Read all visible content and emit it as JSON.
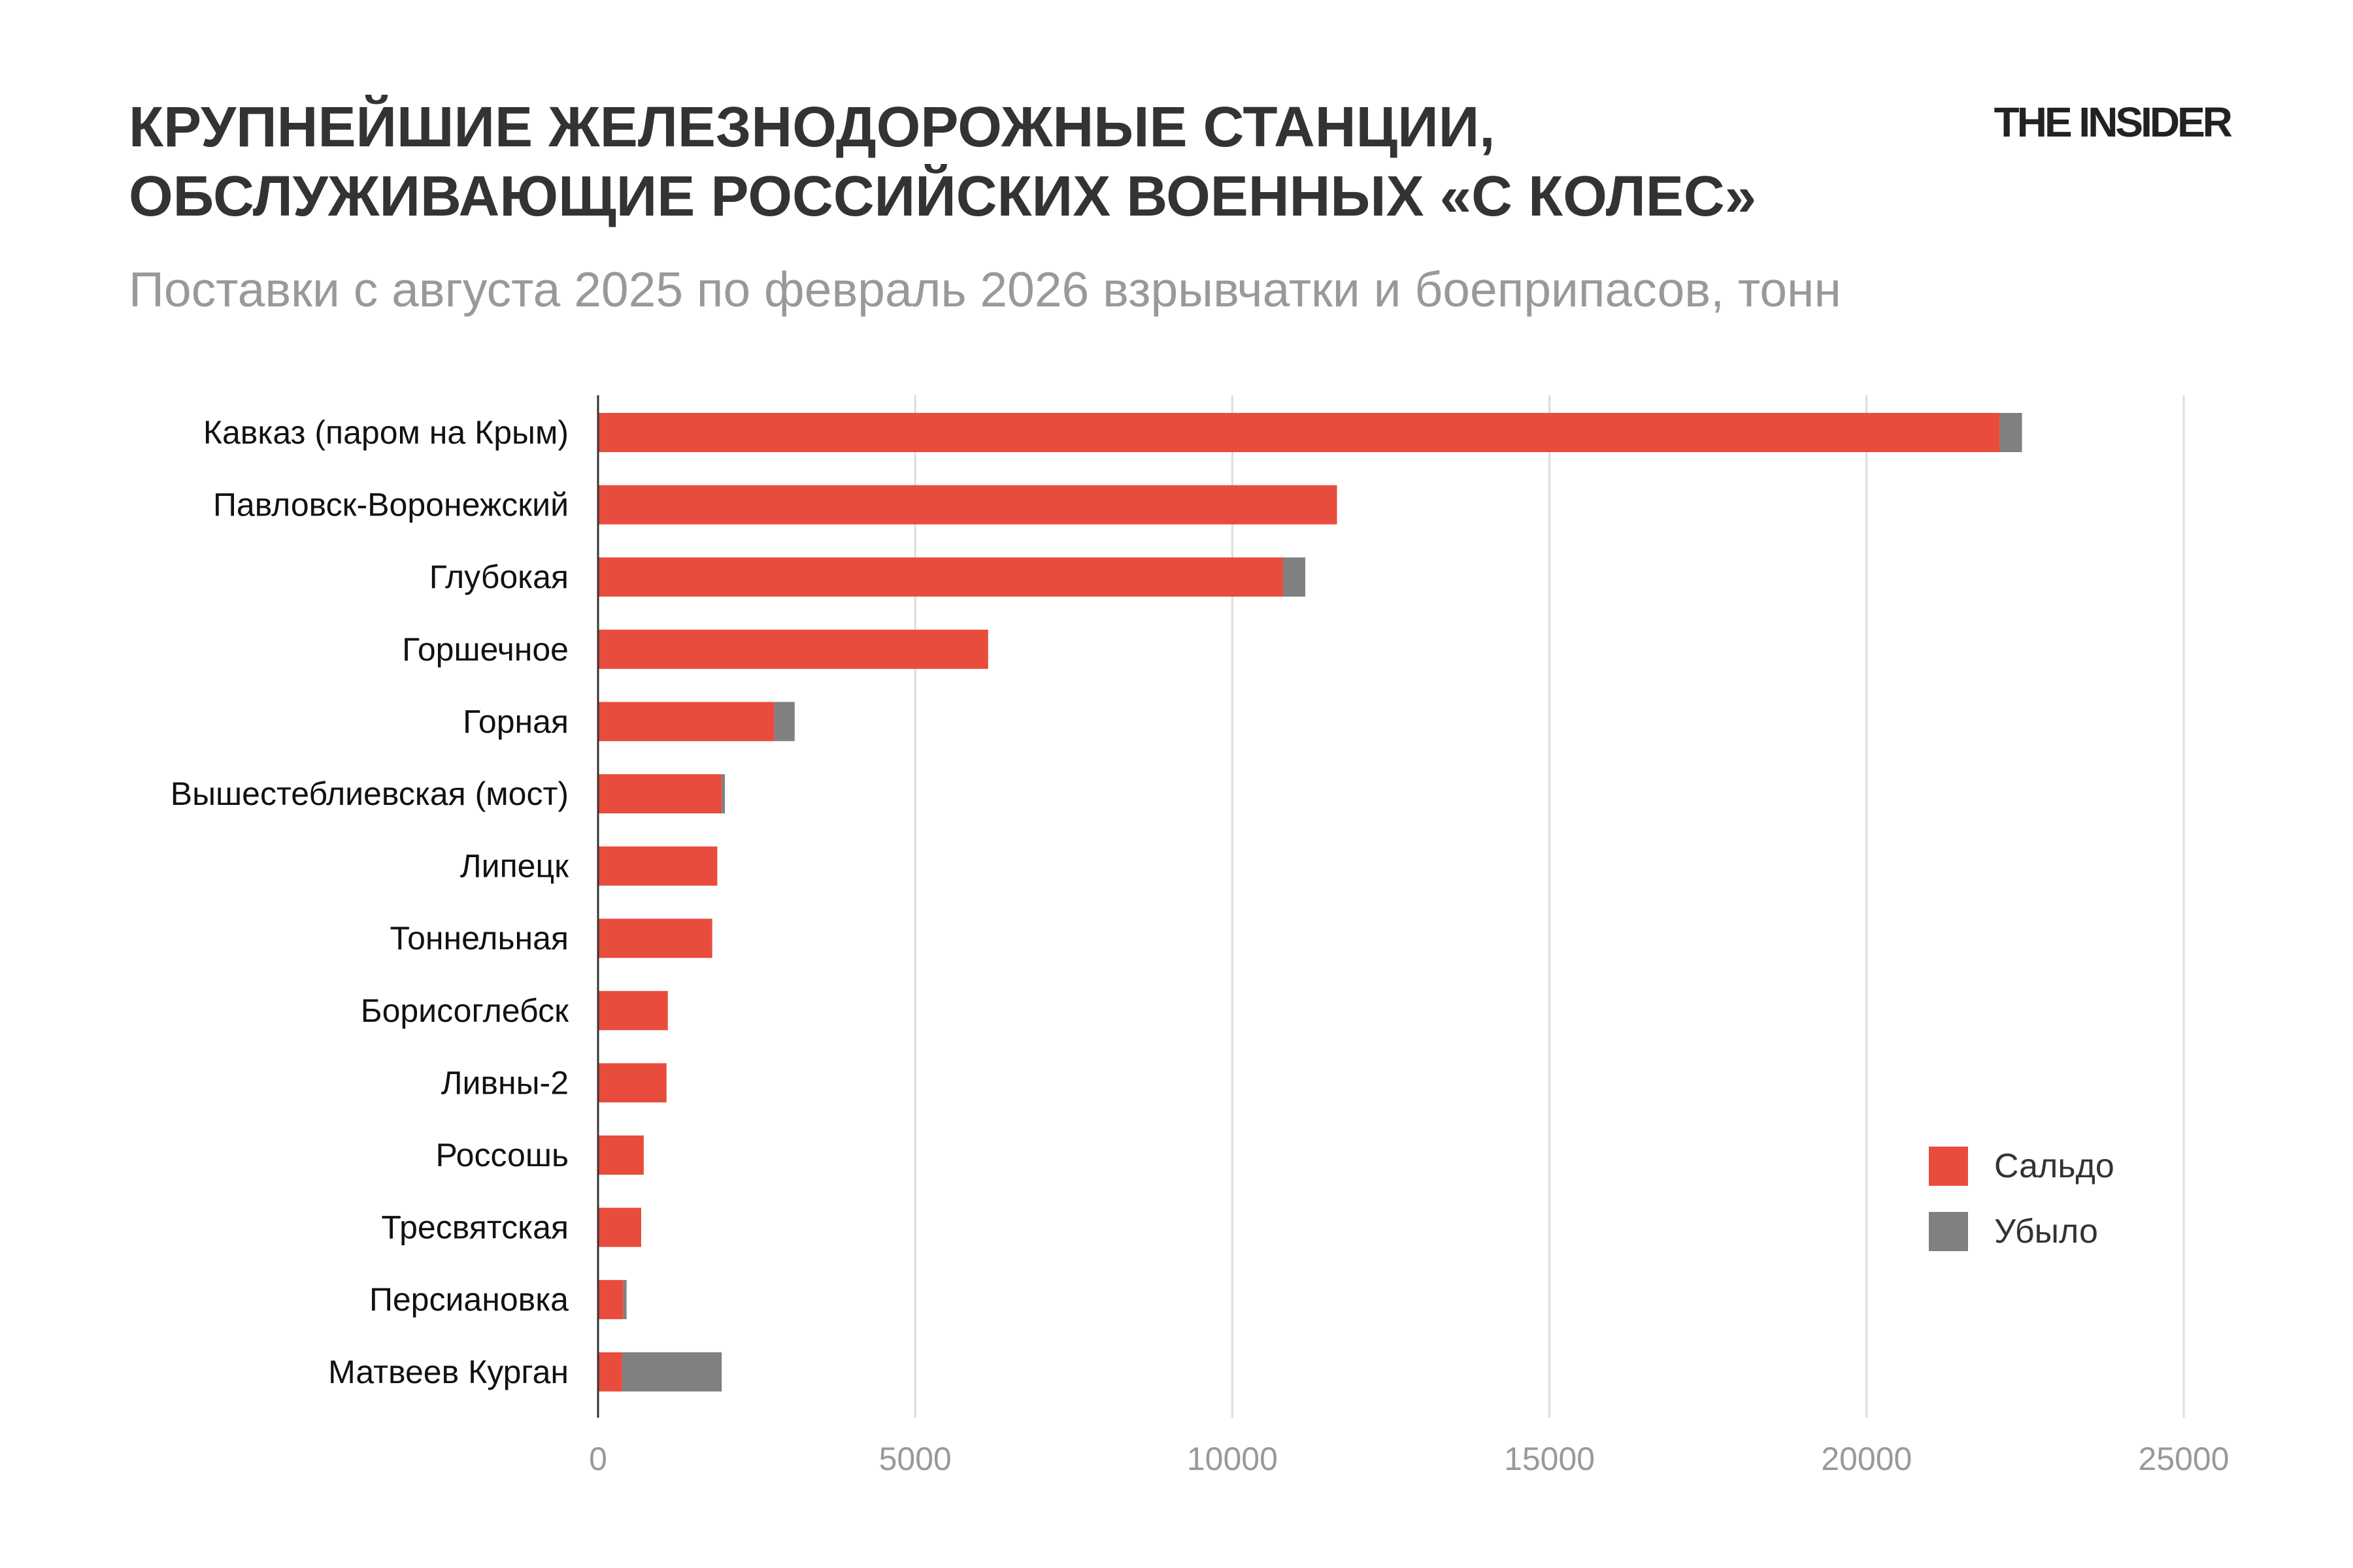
{
  "header": {
    "title_lines": [
      "КРУПНЕЙШИЕ ЖЕЛЕЗНОДОРОЖНЫЕ СТАНЦИИ,",
      "ОБСЛУЖИВАЮЩИЕ РОССИЙСКИХ ВОЕННЫХ «С КОЛЕС»"
    ],
    "subtitle": "Поставки с августа 2025 по февраль 2026 взрывчатки и боеприпасов, тонн",
    "logo": "THE INSIDER"
  },
  "chart_data": {
    "type": "bar",
    "orientation": "horizontal",
    "stacked": true,
    "categories": [
      "Кавказ (паром на Крым)",
      "Павловск-Воронежский",
      "Глубокая",
      "Горшечное",
      "Горная",
      "Вышестеблиевская (мост)",
      "Липецк",
      "Тоннельная",
      "Борисоглебск",
      "Ливны-2",
      "Россошь",
      "Тресвятская",
      "Персиановка",
      "Матвеев Курган"
    ],
    "series": [
      {
        "name": "Сальдо",
        "color": "#e84c3d",
        "values": [
          22100,
          11650,
          10800,
          6150,
          2780,
          1950,
          1880,
          1800,
          1100,
          1080,
          720,
          680,
          400,
          380
        ]
      },
      {
        "name": "Убыло",
        "color": "#808080",
        "values": [
          350,
          0,
          350,
          0,
          320,
          50,
          0,
          0,
          0,
          0,
          0,
          0,
          50,
          1570
        ]
      }
    ],
    "xlim": [
      0,
      25000
    ],
    "xticks": [
      0,
      5000,
      10000,
      15000,
      20000,
      25000
    ],
    "grid": true,
    "legend_position": "bottom-right"
  }
}
